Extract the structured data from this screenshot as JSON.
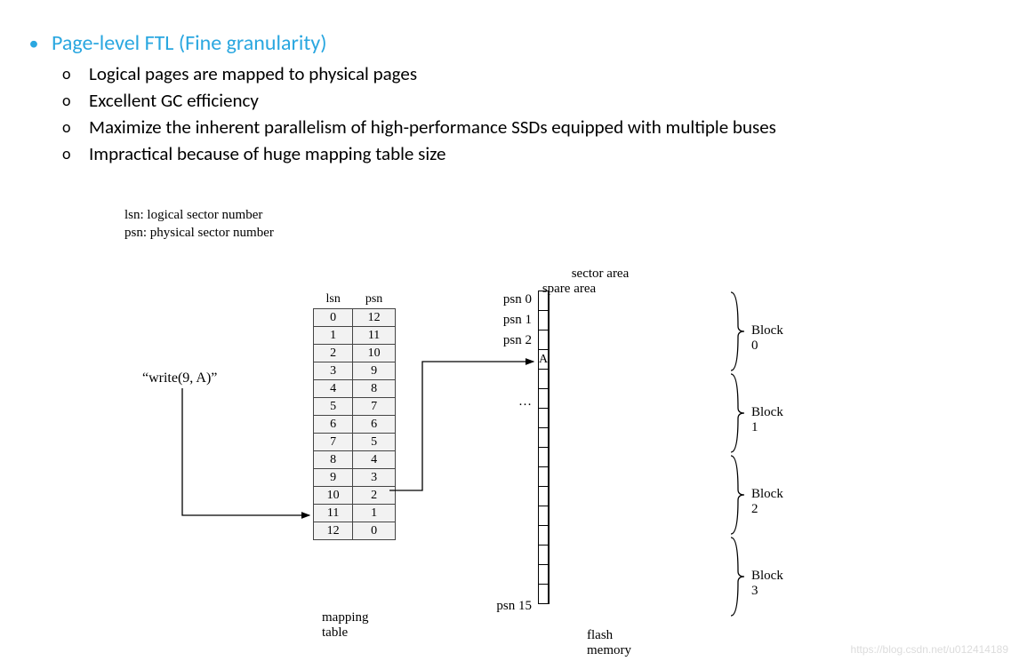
{
  "title": {
    "text": "Page-level FTL (Fine granularity)",
    "color": "#2aa7e0",
    "bullet_color": "#2aa7e0",
    "font_size": 24
  },
  "sub_bullets": [
    "Logical pages are mapped to physical pages",
    "Excellent GC efficiency",
    "Maximize the inherent parallelism of high-performance SSDs equipped with multiple buses",
    "Impractical because of huge mapping table size"
  ],
  "legend": {
    "line1": "lsn: logical sector number",
    "line2": "psn: physical sector number"
  },
  "write_label": "“write(9, A)”",
  "mapping_table": {
    "headers": [
      "lsn",
      "psn"
    ],
    "rows": [
      [
        0,
        12
      ],
      [
        1,
        11
      ],
      [
        2,
        10
      ],
      [
        3,
        9
      ],
      [
        4,
        8
      ],
      [
        5,
        7
      ],
      [
        6,
        6
      ],
      [
        7,
        5
      ],
      [
        8,
        4
      ],
      [
        9,
        3
      ],
      [
        10,
        2
      ],
      [
        11,
        1
      ],
      [
        12,
        0
      ]
    ],
    "caption": "mapping table",
    "cell_bg": "#f2f2f2"
  },
  "flash": {
    "sector_area_label": "sector area",
    "spare_area_label": "spare area",
    "row_count": 16,
    "block_size": 4,
    "content_cell": {
      "row": 3,
      "text": "A"
    },
    "psn_labels": [
      {
        "row": 0,
        "text": "psn 0"
      },
      {
        "row": 1,
        "text": "psn 1"
      },
      {
        "row": 2,
        "text": "psn 2"
      },
      {
        "row": 5,
        "text": "…"
      },
      {
        "row": 15,
        "text": "psn 15"
      }
    ],
    "block_labels": [
      "Block 0",
      "Block 1",
      "Block 2",
      "Block 3"
    ],
    "caption": "flash memory"
  },
  "watermark": "https://blog.csdn.net/u012414189",
  "colors": {
    "text": "#000000",
    "background": "#ffffff",
    "watermark": "#dcdcdc"
  }
}
